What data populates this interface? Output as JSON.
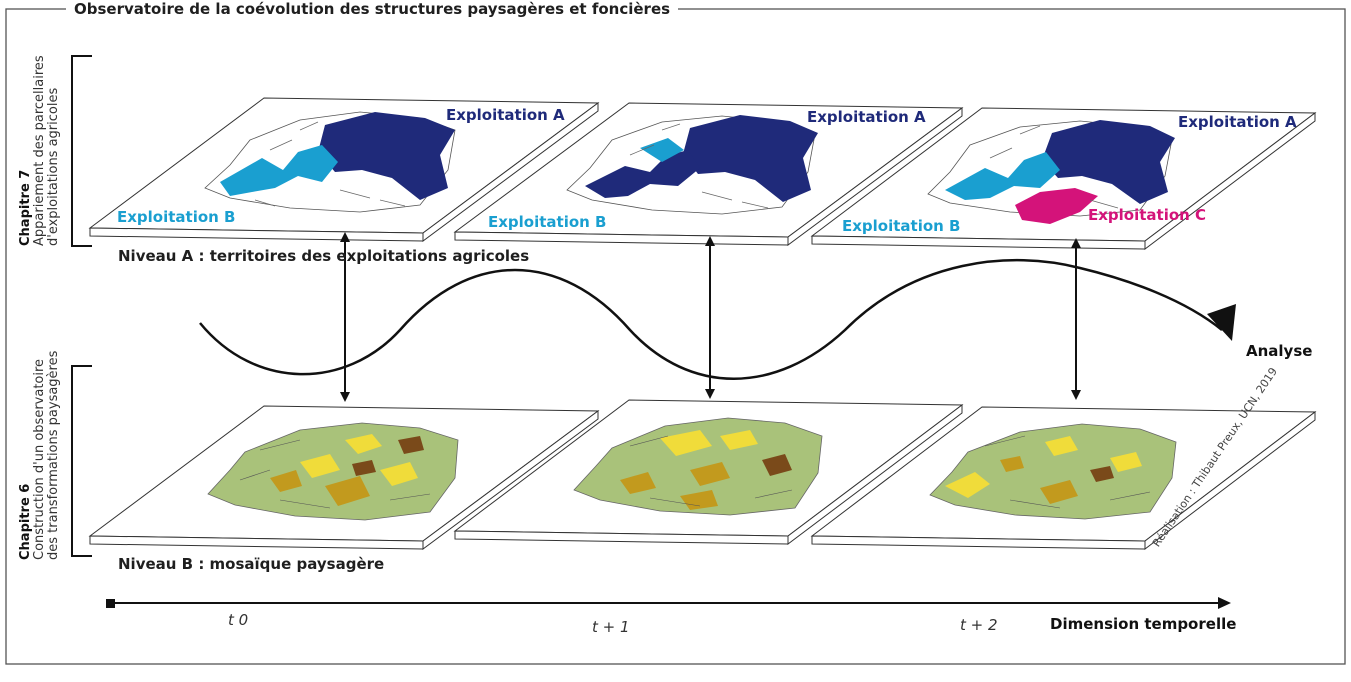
{
  "title": "Observatoire de la coévolution des structures paysagères et foncières",
  "chapter7": {
    "label": "Chapitre 7",
    "line1": "Appariement des parcellaires",
    "line2": "d'exploitations agricoles"
  },
  "chapter6": {
    "label": "Chapitre 6",
    "line1": "Construction d'un observatoire",
    "line2": "des transformations paysagères"
  },
  "level_a": "Niveau A : territoires des exploitations agricoles",
  "level_b": "Niveau B : mosaïque paysagère",
  "analyse": "Analyse",
  "time_axis": {
    "label": "Dimension temporelle",
    "ticks": [
      "t 0",
      "t + 1",
      "t + 2"
    ]
  },
  "credit": "Réalisation : Thibaut Preux, UCN, 2019",
  "farm_labels": {
    "a": "Exploitation A",
    "b": "Exploitation B",
    "c": "Exploitation C"
  },
  "colors": {
    "exploitation_a": "#1f2a7a",
    "exploitation_b": "#1a9fd0",
    "exploitation_c": "#d4137a",
    "landscape_green": "#a9c27a",
    "landscape_yellow": "#f0dc3a",
    "landscape_ochre": "#c29a1e",
    "landscape_brown": "#7a4a1a"
  }
}
